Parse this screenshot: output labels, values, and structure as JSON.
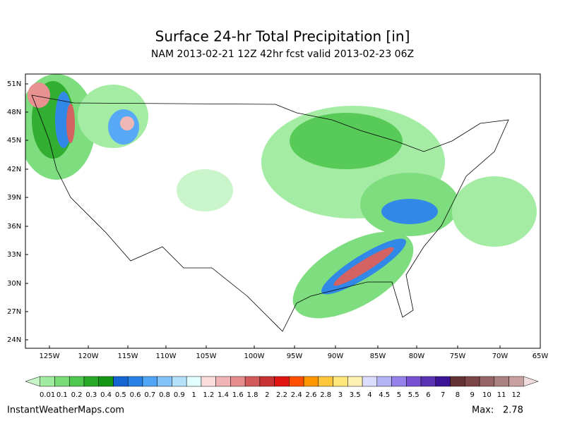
{
  "header": {
    "title": "Surface 24-hr Total Precipitation [in]",
    "subtitle": "NAM 2013-02-21 12Z 42hr fcst valid 2013-02-23 06Z"
  },
  "map": {
    "lat_labels": [
      "51N",
      "48N",
      "45N",
      "42N",
      "39N",
      "36N",
      "33N",
      "30N",
      "27N",
      "24N"
    ],
    "lon_labels": [
      "125W",
      "120W",
      "115W",
      "110W",
      "105W",
      "100W",
      "95W",
      "90W",
      "85W",
      "80W",
      "75W",
      "70W",
      "65W"
    ]
  },
  "colorbar": {
    "labels": [
      "0.01",
      "0.1",
      "0.2",
      "0.3",
      "0.4",
      "0.5",
      "0.6",
      "0.7",
      "0.8",
      "0.9",
      "1",
      "1.2",
      "1.4",
      "1.6",
      "1.8",
      "2",
      "2.2",
      "2.4",
      "2.6",
      "2.8",
      "3",
      "3.5",
      "4",
      "4.5",
      "5",
      "5.5",
      "6",
      "7",
      "8",
      "9",
      "10",
      "11",
      "12"
    ],
    "colors": [
      "#c8f5c8",
      "#a0eba0",
      "#78dc78",
      "#50c850",
      "#28aa28",
      "#149614",
      "#1464d2",
      "#2882e6",
      "#50a5f5",
      "#82c3fa",
      "#b4e1fa",
      "#e1ffff",
      "#fadcdc",
      "#f0b4b4",
      "#e68c8c",
      "#d25a5a",
      "#c83232",
      "#e11414",
      "#ff5000",
      "#ff9600",
      "#ffc83c",
      "#ffe678",
      "#fff0b4",
      "#dcdcff",
      "#b4b4f5",
      "#9682eb",
      "#7850d2",
      "#5a32b4",
      "#3c1496",
      "#643232",
      "#7d4646",
      "#966464",
      "#aa8282",
      "#c8a0a0",
      "#f0dcdc"
    ]
  },
  "footer": {
    "source": "InstantWeatherMaps.com",
    "max_label": "Max:",
    "max_value": 2.78
  }
}
